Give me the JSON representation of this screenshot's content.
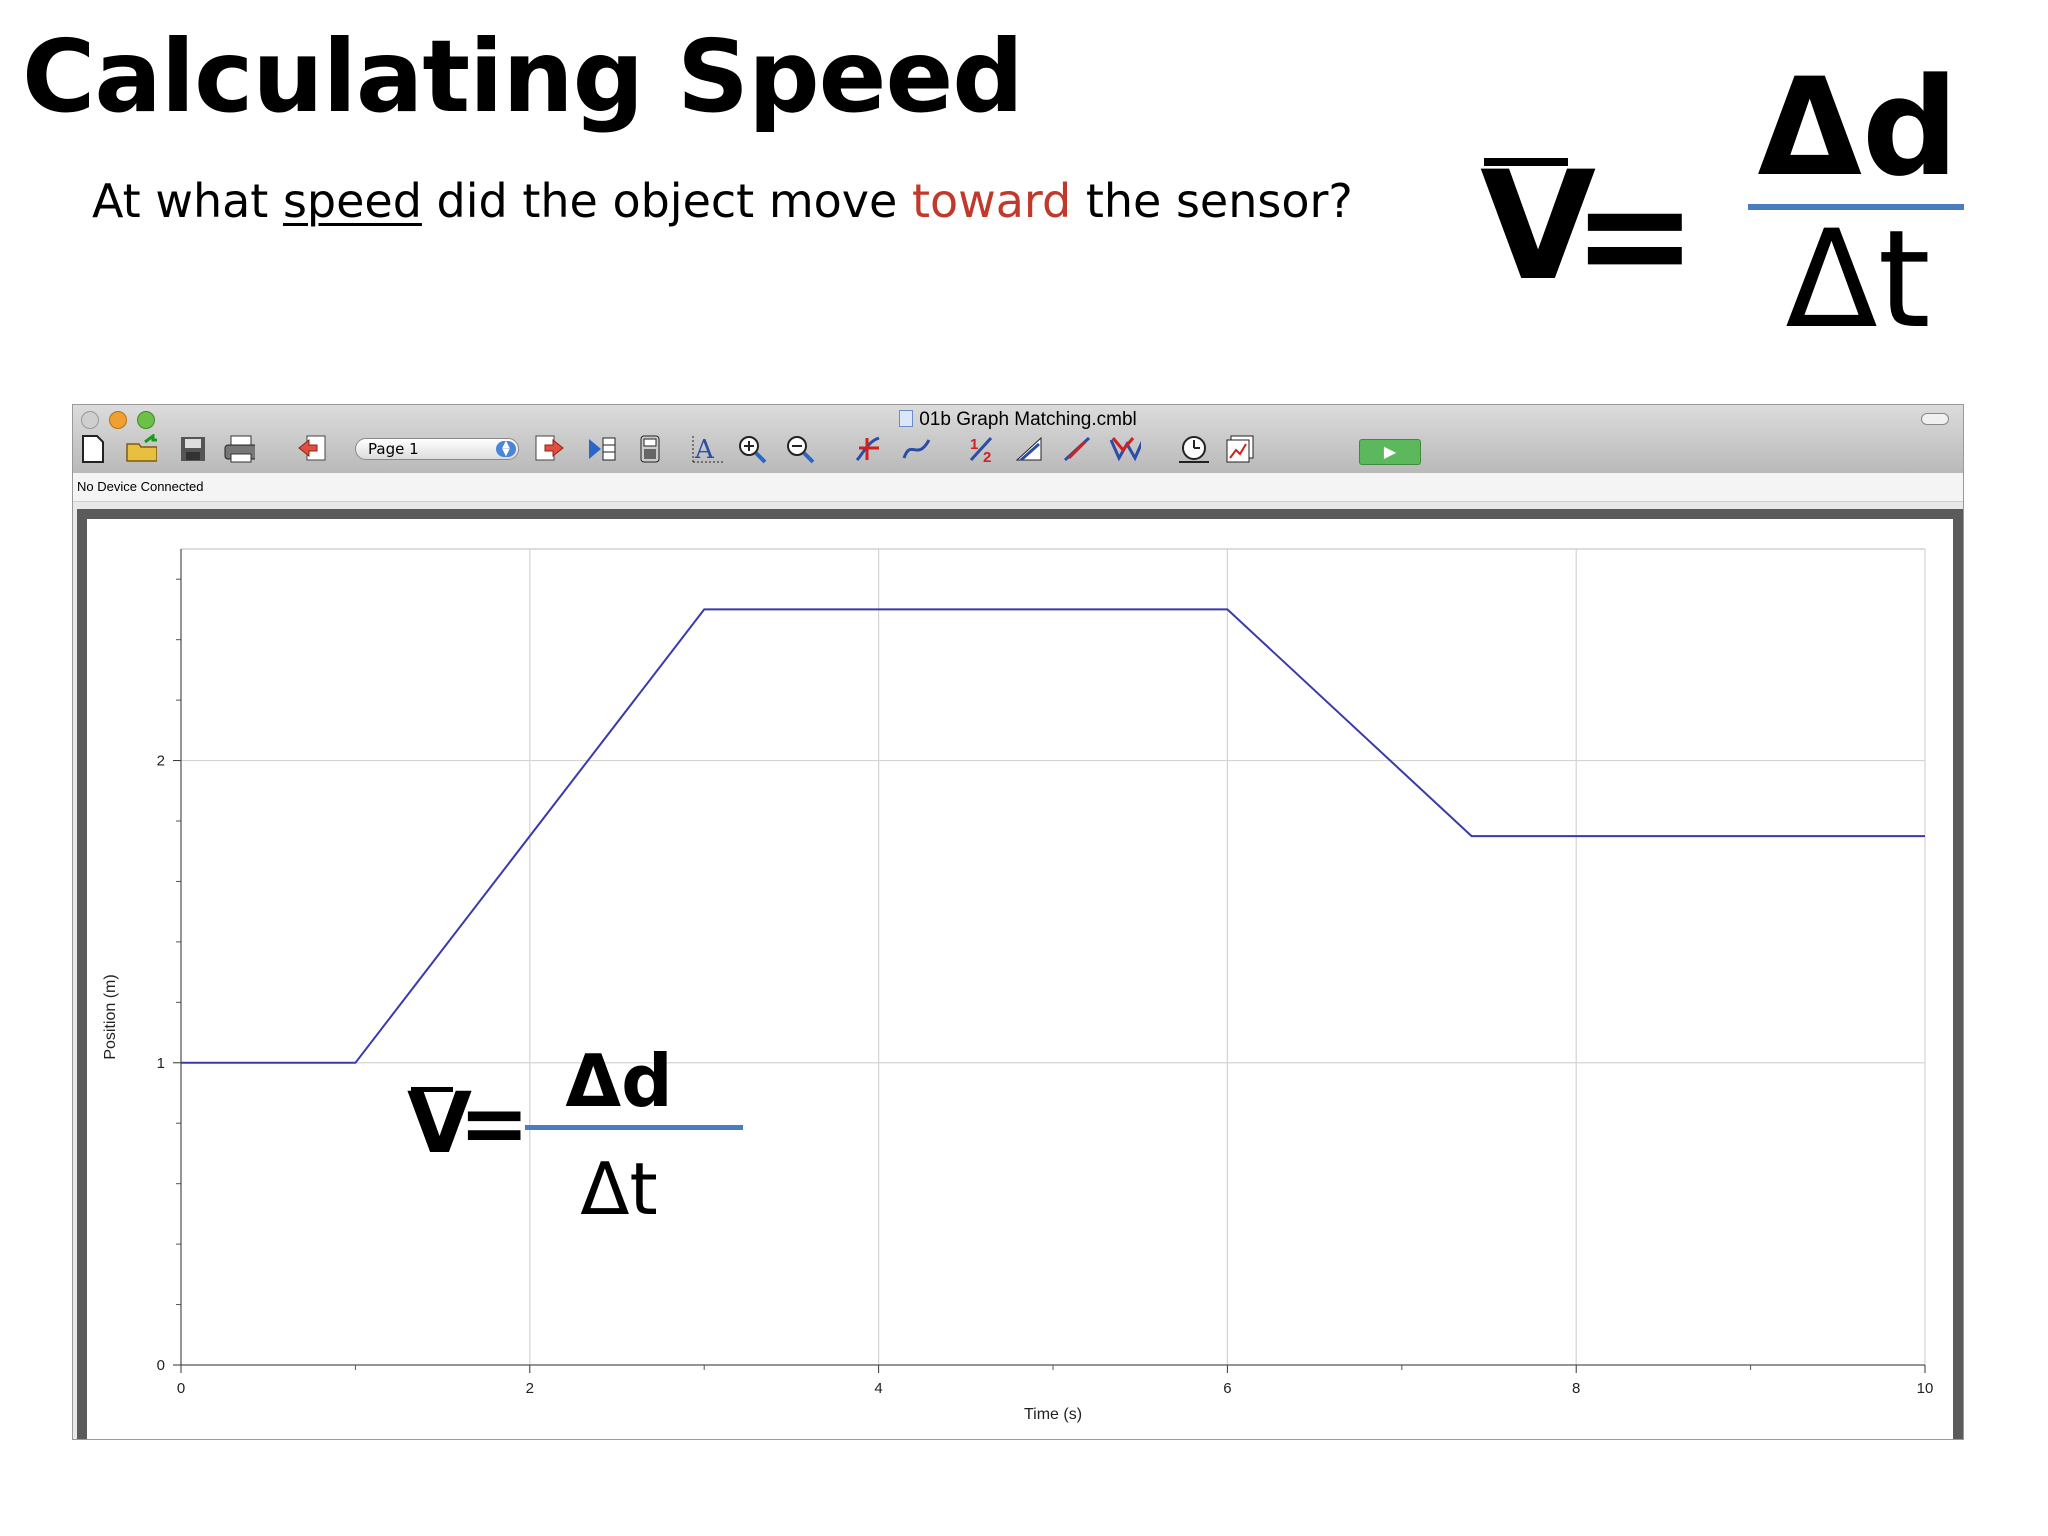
{
  "slide": {
    "title": "Calculating Speed",
    "question": {
      "part1": "At what ",
      "underlined": "speed",
      "part2": " did the object move ",
      "highlight": "toward",
      "part3": " the sensor?"
    },
    "highlight_color": "#c0392b"
  },
  "formula": {
    "velocity_symbol": "V",
    "equals": "=",
    "numerator": "Δd",
    "denominator": "Δt",
    "fraction_line_color": "#4a7cc0"
  },
  "window": {
    "title": "01b Graph Matching.cmbl",
    "status": "No Device Connected",
    "page_selector": "Page 1",
    "toolbar_icons": [
      "new-file-icon",
      "open-folder-icon",
      "save-icon",
      "print-icon",
      "back-page-icon",
      "page-select",
      "next-page-icon",
      "collect-config-icon",
      "data-table-icon",
      "autoscale-icon",
      "zoom-in-icon",
      "zoom-out-icon",
      "examine-icon",
      "tangent-icon",
      "integral-icon",
      "stats-icon",
      "linear-fit-icon",
      "curve-fit-icon",
      "timer-icon",
      "graph-options-icon",
      "collect-button"
    ]
  },
  "chart_data": {
    "type": "line",
    "xlabel": "Time (s)",
    "ylabel": "Position (m)",
    "xlim": [
      0,
      10
    ],
    "ylim": [
      0,
      2.7
    ],
    "x_ticks": [
      "0",
      "2",
      "4",
      "6",
      "8",
      "10"
    ],
    "y_ticks": [
      "0",
      "1",
      "2"
    ],
    "grid": true,
    "series": [
      {
        "color": "#3a3aaa",
        "points": [
          [
            0,
            1.0
          ],
          [
            1,
            1.0
          ],
          [
            3,
            2.5
          ],
          [
            6,
            2.5
          ],
          [
            7.4,
            1.75
          ],
          [
            10,
            1.75
          ]
        ]
      }
    ]
  }
}
